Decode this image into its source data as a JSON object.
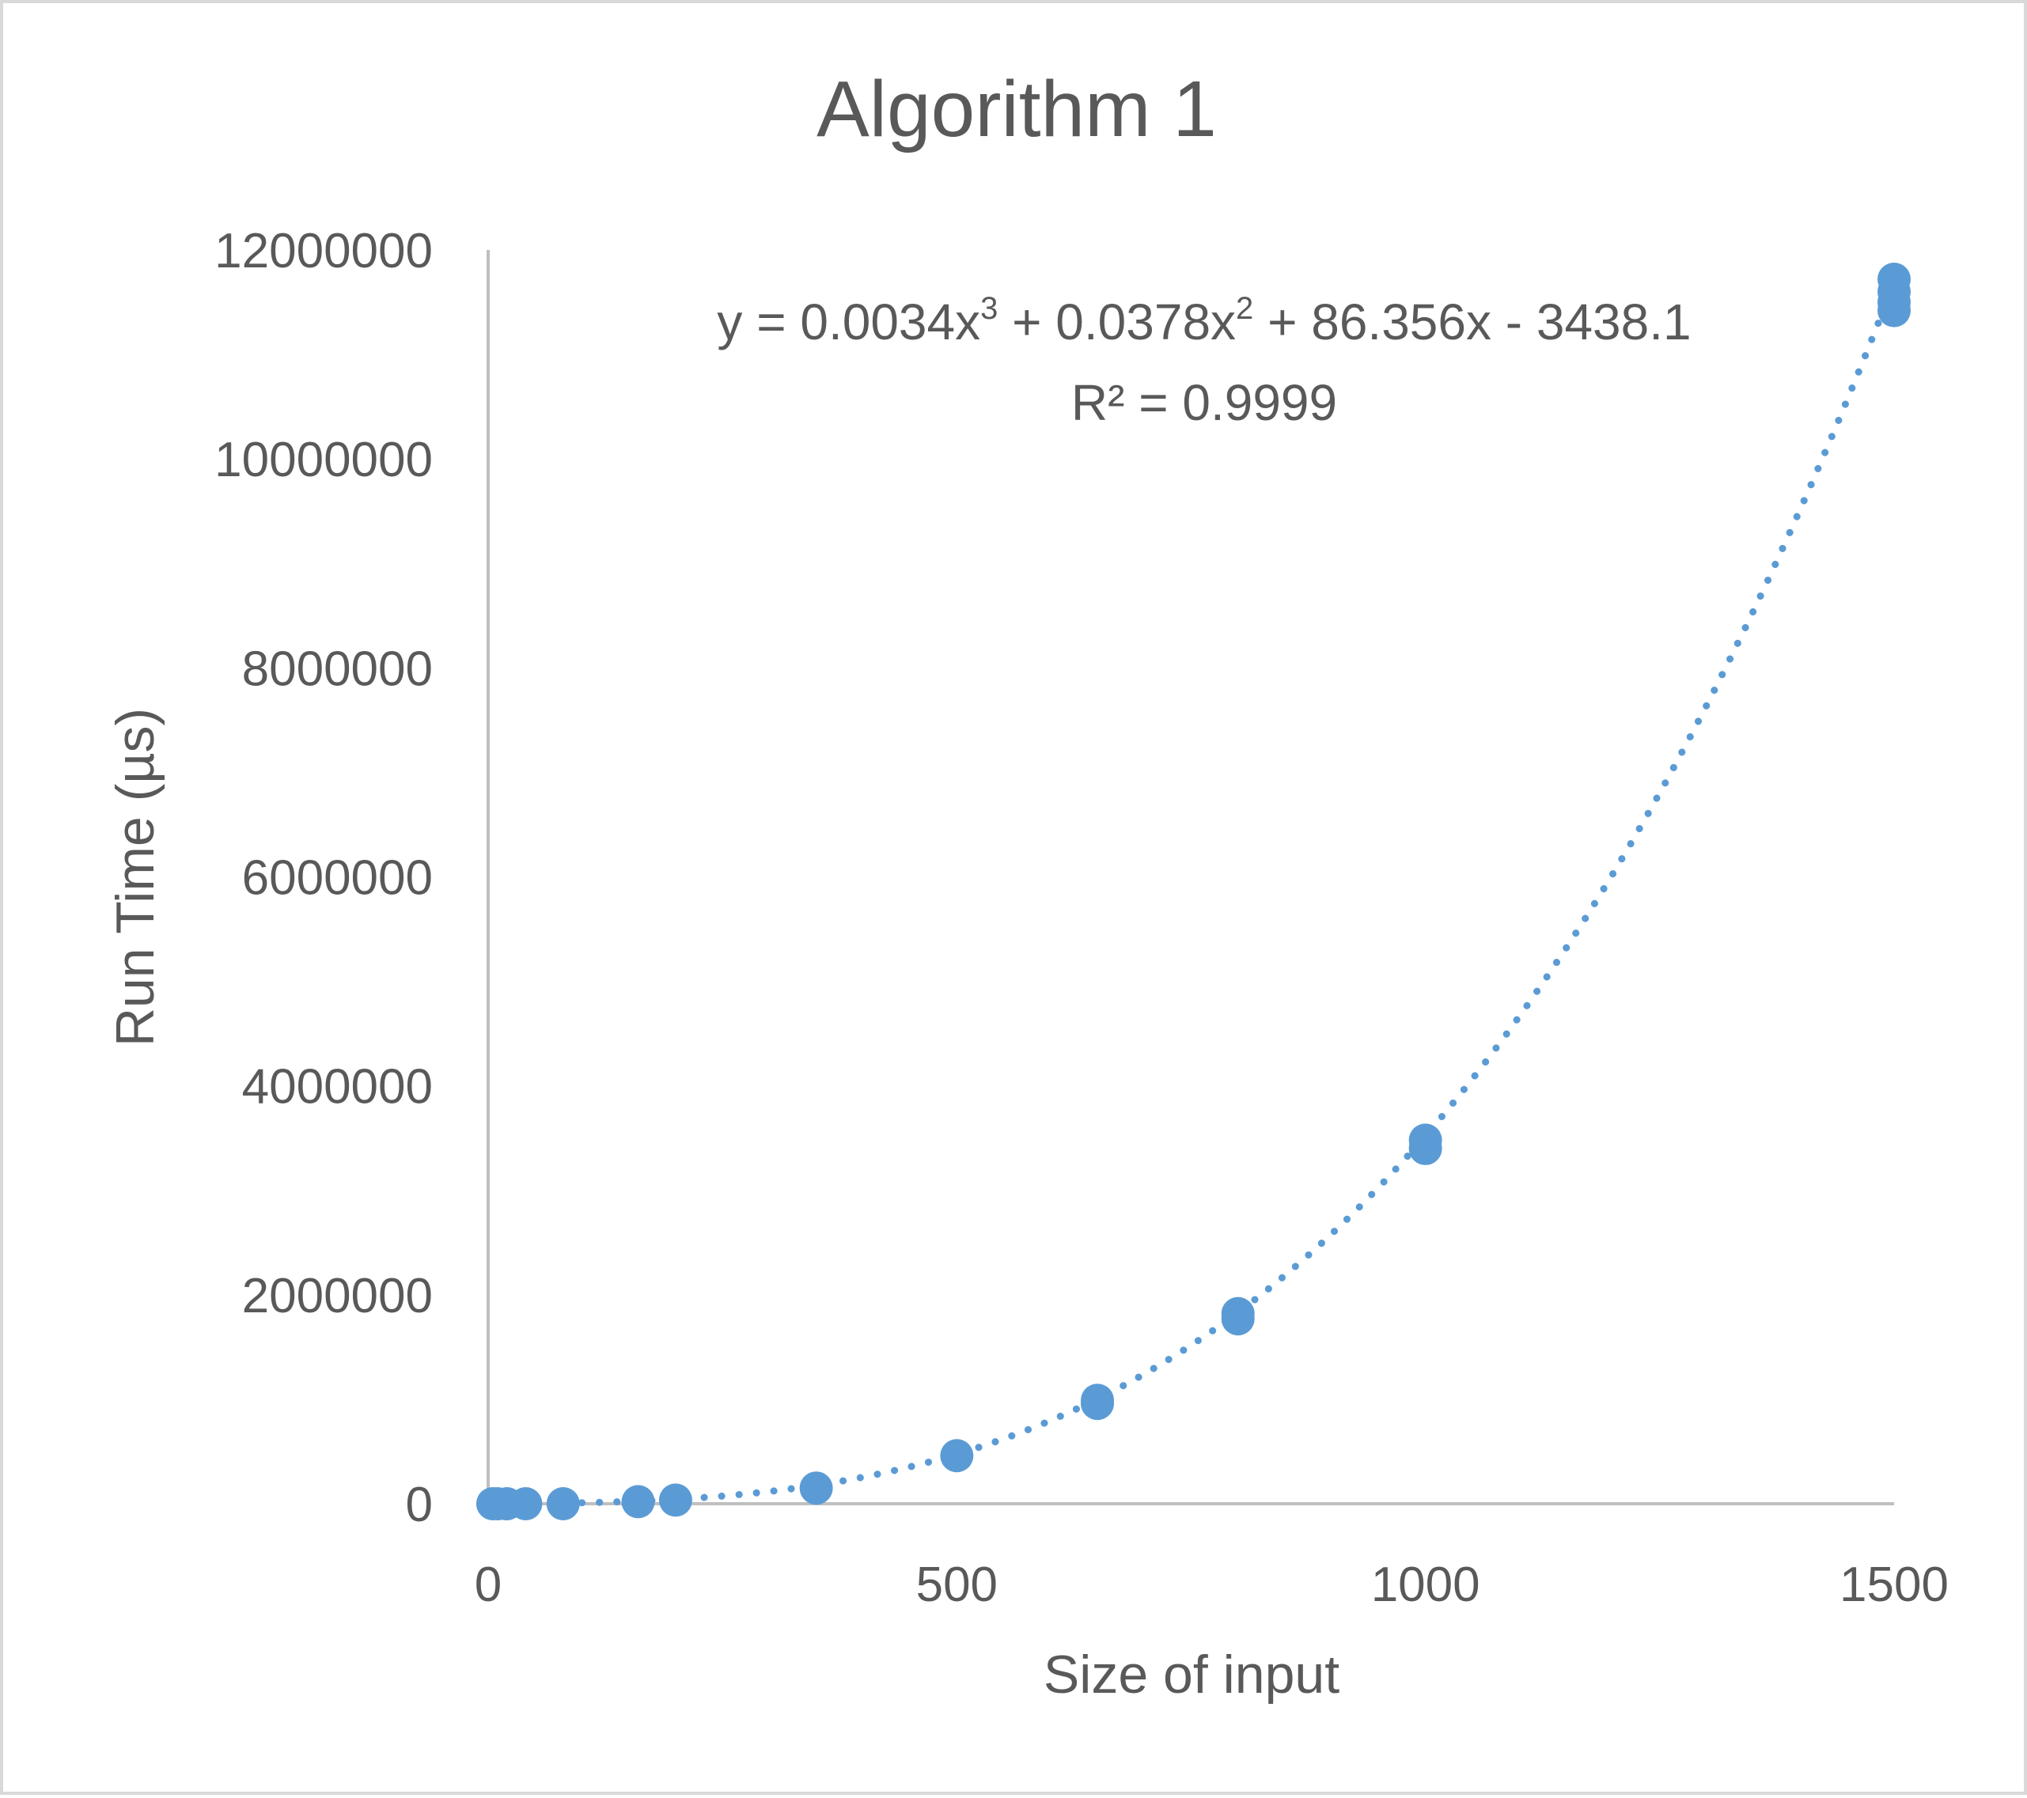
{
  "chart_data": {
    "type": "scatter",
    "title": "Algorithm 1",
    "xlabel": "Size of input",
    "ylabel": "Run Time (µs)",
    "xlim": [
      0,
      1500
    ],
    "ylim": [
      0,
      12000000
    ],
    "xticks": [
      0,
      500,
      1000,
      1500
    ],
    "yticks": [
      0,
      2000000,
      4000000,
      6000000,
      8000000,
      10000000,
      12000000
    ],
    "xtick_labels": [
      "0",
      "500",
      "1000",
      "1500"
    ],
    "ytick_labels": [
      "0",
      "2000000",
      "4000000",
      "6000000",
      "8000000",
      "10000000",
      "12000000"
    ],
    "grid": false,
    "legend": "none",
    "series": [
      {
        "color": "#5b9bd5",
        "points": [
          {
            "x": 5,
            "y": 0
          },
          {
            "x": 10,
            "y": 0
          },
          {
            "x": 20,
            "y": 0
          },
          {
            "x": 40,
            "y": 0
          },
          {
            "x": 80,
            "y": 0
          },
          {
            "x": 160,
            "y": 20000
          },
          {
            "x": 200,
            "y": 35000
          },
          {
            "x": 350,
            "y": 150000
          },
          {
            "x": 500,
            "y": 460000
          },
          {
            "x": 650,
            "y": 990000
          },
          {
            "x": 650,
            "y": 960000
          },
          {
            "x": 800,
            "y": 1820000
          },
          {
            "x": 800,
            "y": 1770000
          },
          {
            "x": 1000,
            "y": 3480000
          },
          {
            "x": 1000,
            "y": 3400000
          },
          {
            "x": 1500,
            "y": 11720000
          },
          {
            "x": 1500,
            "y": 11600000
          },
          {
            "x": 1500,
            "y": 11500000
          },
          {
            "x": 1500,
            "y": 11420000
          }
        ]
      }
    ],
    "trendline": {
      "type": "polynomial",
      "order": 3,
      "coefficients": [
        0.0034,
        0.0378,
        86.356,
        -3438.1
      ],
      "equation_prefix": "y = 0.0034x",
      "equation_exp1": "3",
      "equation_mid": " + 0.0378x",
      "equation_exp2": "2",
      "equation_suffix": " + 86.356x - 3438.1",
      "r2_label": "R² = 0.9999",
      "color": "#5b9bd5",
      "style": "dotted"
    }
  }
}
